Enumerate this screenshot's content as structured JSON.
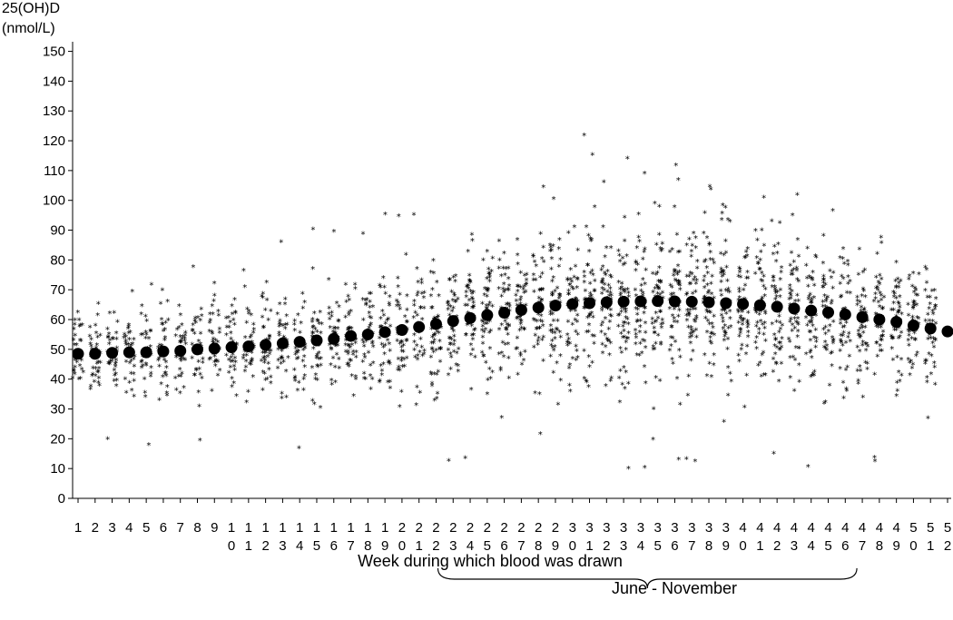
{
  "chart_data": {
    "type": "scatter",
    "ylabel_lines": [
      "25(OH)D",
      "(nmol/L)"
    ],
    "xlabel": "Week during which blood was drawn",
    "annotation": {
      "label": "June - November",
      "from_week": 22,
      "to_week": 47
    },
    "ylim": [
      0,
      152
    ],
    "yticks": [
      "0",
      "10",
      "20",
      "30",
      "40",
      "50",
      "60",
      "70",
      "80",
      "90",
      "100",
      "110",
      "120",
      "130",
      "140",
      "150"
    ],
    "xlim": [
      1,
      52
    ],
    "xticks": [
      "1",
      "2",
      "3",
      "4",
      "5",
      "6",
      "7",
      "8",
      "9",
      "10",
      "11",
      "12",
      "13",
      "14",
      "15",
      "16",
      "17",
      "18",
      "19",
      "20",
      "21",
      "22",
      "23",
      "24",
      "25",
      "26",
      "27",
      "28",
      "29",
      "30",
      "31",
      "32",
      "33",
      "34",
      "35",
      "36",
      "37",
      "38",
      "39",
      "40",
      "41",
      "42",
      "43",
      "44",
      "45",
      "46",
      "47",
      "48",
      "49",
      "50",
      "51",
      "52"
    ],
    "mean_series": {
      "marker": "filled-circle",
      "x": [
        1,
        2,
        3,
        4,
        5,
        6,
        7,
        8,
        9,
        10,
        11,
        12,
        13,
        14,
        15,
        16,
        17,
        18,
        19,
        20,
        21,
        22,
        23,
        24,
        25,
        26,
        27,
        28,
        29,
        30,
        31,
        32,
        33,
        34,
        35,
        36,
        37,
        38,
        39,
        40,
        41,
        42,
        43,
        44,
        45,
        46,
        47,
        48,
        49,
        50,
        51,
        52
      ],
      "y": [
        48.5,
        48.5,
        48.8,
        49,
        49,
        49.3,
        49.5,
        50,
        50.3,
        50.7,
        51,
        51.5,
        52,
        52.5,
        53,
        53.5,
        54.5,
        55,
        55.8,
        56.5,
        57.5,
        58.5,
        59.5,
        60.5,
        61.5,
        62.3,
        63.2,
        64,
        64.7,
        65.2,
        65.5,
        65.8,
        66,
        66.1,
        66.2,
        66.1,
        66,
        65.8,
        65.5,
        65.2,
        64.8,
        64.3,
        63.7,
        63,
        62.4,
        61.7,
        60.8,
        60,
        59.2,
        58,
        57,
        56
      ]
    },
    "individual_marker": "*"
  }
}
